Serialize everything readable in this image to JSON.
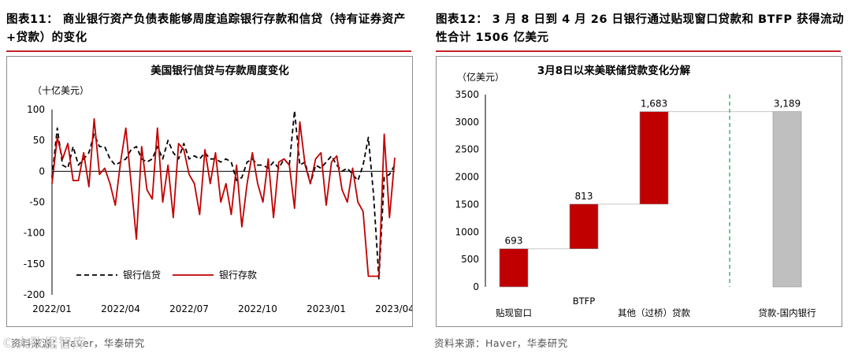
{
  "left": {
    "figure_title": "图表11：  商业银行资产负债表能够周度追踪银行存款和信贷（持有证券资产+贷款）的变化",
    "source": "资料来源：Haver，华泰研究",
    "watermark": "©大数据智库",
    "colors": {
      "loans": "#000000",
      "deposits": "#c00000",
      "rule": "#c8222b"
    }
  },
  "right": {
    "figure_title": "图表12：  3 月 8 日到 4 月 26 日银行通过贴现窗口贷款和 BTFP 获得流动性合计 1506 亿美元",
    "source": "资料来源：Haver，华泰研究",
    "colors": {
      "red_bar": "#c00000",
      "grey_bar": "#bfbfbf",
      "divider": "#4caf6e"
    }
  },
  "chart_data": [
    {
      "type": "line",
      "title": "美国银行信贷与存款周度变化",
      "unit_label": "（十亿美元）",
      "ylim": [
        -200,
        100
      ],
      "yticks": [
        100,
        50,
        0,
        -50,
        -100,
        -150,
        -200
      ],
      "x_tick_labels": [
        "2022/01",
        "2022/04",
        "2022/07",
        "2022/10",
        "2023/01",
        "2023/04"
      ],
      "x_tick_weeks": [
        0,
        13,
        26,
        39,
        52,
        65
      ],
      "legend_position": "bottom-left",
      "grid": false,
      "series": [
        {
          "name": "银行信贷",
          "style": "dashed",
          "color": "#000000",
          "values": [
            -10,
            70,
            10,
            5,
            40,
            10,
            20,
            30,
            60,
            40,
            40,
            20,
            10,
            15,
            20,
            35,
            40,
            20,
            15,
            20,
            40,
            20,
            50,
            30,
            20,
            45,
            20,
            25,
            20,
            30,
            20,
            20,
            15,
            20,
            15,
            -15,
            -10,
            15,
            20,
            10,
            10,
            5,
            15,
            5,
            20,
            10,
            98,
            10,
            15,
            -20,
            10,
            5,
            15,
            25,
            10,
            0,
            5,
            -5,
            -15,
            10,
            55,
            -40,
            -175,
            -10,
            -5,
            10
          ]
        },
        {
          "name": "银行存款",
          "style": "solid",
          "color": "#c00000",
          "values": [
            -20,
            55,
            20,
            45,
            -15,
            -15,
            30,
            -25,
            85,
            -5,
            5,
            -20,
            -55,
            15,
            70,
            -20,
            -110,
            40,
            -30,
            -45,
            70,
            -50,
            10,
            -75,
            45,
            35,
            -5,
            -20,
            -70,
            35,
            -20,
            30,
            -50,
            -20,
            -70,
            10,
            -90,
            -20,
            30,
            -20,
            -50,
            20,
            -75,
            15,
            20,
            10,
            -60,
            80,
            10,
            -20,
            20,
            30,
            -55,
            15,
            25,
            -30,
            -50,
            5,
            -50,
            -65,
            -170,
            -170,
            -170,
            60,
            -75,
            22
          ]
        }
      ]
    },
    {
      "type": "bar",
      "subtype": "waterfall",
      "title": "3月8日以来美联储贷款变化分解",
      "unit_label": "（亿美元）",
      "ylim": [
        0,
        3500
      ],
      "yticks": [
        3500,
        3000,
        2500,
        2000,
        1500,
        1000,
        500,
        0
      ],
      "grid": false,
      "categories": [
        "贴现窗口",
        "BTFP",
        "其他（过桥）贷款",
        "贷款-国内银行"
      ],
      "values": [
        693,
        813,
        1683,
        3189
      ],
      "data_labels": [
        "693",
        "813",
        "1,683",
        "3,189"
      ],
      "bar_colors": [
        "#c00000",
        "#c00000",
        "#c00000",
        "#bfbfbf"
      ]
    }
  ]
}
